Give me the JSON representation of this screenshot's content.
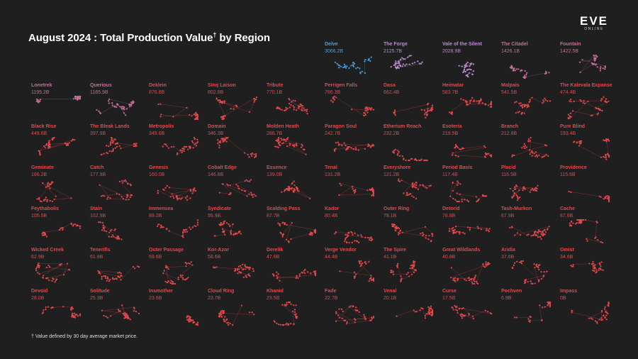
{
  "header": {
    "title": "August 2024 : Total Production Value",
    "dagger": "†",
    "title_suffix": "by Region"
  },
  "logo": {
    "line1": "EVE",
    "line2": "ONLINE"
  },
  "footnote": "† Value defined by 30 day average market price.",
  "colors": {
    "top": "#4a9fe0",
    "high": "#b98ad0",
    "mid": "#c27098",
    "low": "#e2484c",
    "background": "#1f1f1f"
  },
  "chart_data": {
    "type": "table",
    "title": "August 2024 : Total Production Value† by Region",
    "unit": "B",
    "regions": [
      {
        "name": "Delve",
        "value": "3066.2B",
        "tier": "top"
      },
      {
        "name": "The Forge",
        "value": "2125.7B",
        "tier": "high"
      },
      {
        "name": "Vale of the Silent",
        "value": "2028.9B",
        "tier": "high"
      },
      {
        "name": "The Citadel",
        "value": "1426.1B",
        "tier": "mid"
      },
      {
        "name": "Fountain",
        "value": "1422.5B",
        "tier": "mid"
      },
      {
        "name": "Lonetrek",
        "value": "1195.2B",
        "tier": "mid"
      },
      {
        "name": "Querious",
        "value": "1165.9B",
        "tier": "mid"
      },
      {
        "name": "Deklein",
        "value": "876.8B",
        "tier": "low"
      },
      {
        "name": "Sinq Laison",
        "value": "802.8B",
        "tier": "low"
      },
      {
        "name": "Tribute",
        "value": "770.1B",
        "tier": "low"
      },
      {
        "name": "Perrigen Falls",
        "value": "766.3B",
        "tier": "low"
      },
      {
        "name": "Dasa",
        "value": "662.4B",
        "tier": "low"
      },
      {
        "name": "Heimatar",
        "value": "583.7B",
        "tier": "low"
      },
      {
        "name": "Malpais",
        "value": "541.5B",
        "tier": "low"
      },
      {
        "name": "The Kalevala Expanse",
        "value": "474.4B",
        "tier": "low"
      },
      {
        "name": "Black Rise",
        "value": "449.6B",
        "tier": "low"
      },
      {
        "name": "The Bleak Lands",
        "value": "397.9B",
        "tier": "low"
      },
      {
        "name": "Metropolis",
        "value": "349.6B",
        "tier": "low"
      },
      {
        "name": "Domain",
        "value": "346.3B",
        "tier": "low"
      },
      {
        "name": "Molden Heath",
        "value": "286.7B",
        "tier": "low"
      },
      {
        "name": "Paragon Soul",
        "value": "242.7B",
        "tier": "low"
      },
      {
        "name": "Etherium Reach",
        "value": "232.2B",
        "tier": "low"
      },
      {
        "name": "Esoteria",
        "value": "219.5B",
        "tier": "low"
      },
      {
        "name": "Branch",
        "value": "212.8B",
        "tier": "low"
      },
      {
        "name": "Pure Blind",
        "value": "193.4B",
        "tier": "low"
      },
      {
        "name": "Geminate",
        "value": "186.2B",
        "tier": "low"
      },
      {
        "name": "Catch",
        "value": "177.9B",
        "tier": "low"
      },
      {
        "name": "Genesis",
        "value": "160.0B",
        "tier": "low"
      },
      {
        "name": "Cobalt Edge",
        "value": "146.8B",
        "tier": "low"
      },
      {
        "name": "Essence",
        "value": "139.0B",
        "tier": "low"
      },
      {
        "name": "Tenal",
        "value": "131.2B",
        "tier": "low"
      },
      {
        "name": "Everyshore",
        "value": "121.2B",
        "tier": "low"
      },
      {
        "name": "Period Basis",
        "value": "117.4B",
        "tier": "low"
      },
      {
        "name": "Placid",
        "value": "116.5B",
        "tier": "low"
      },
      {
        "name": "Providence",
        "value": "115.6B",
        "tier": "low"
      },
      {
        "name": "Feythabolis",
        "value": "105.5B",
        "tier": "low"
      },
      {
        "name": "Stain",
        "value": "102.9B",
        "tier": "low"
      },
      {
        "name": "Immensea",
        "value": "89.2B",
        "tier": "low"
      },
      {
        "name": "Syndicate",
        "value": "95.9B",
        "tier": "low"
      },
      {
        "name": "Scalding Pass",
        "value": "87.7B",
        "tier": "low"
      },
      {
        "name": "Kador",
        "value": "80.4B",
        "tier": "low"
      },
      {
        "name": "Outer Ring",
        "value": "78.1B",
        "tier": "low"
      },
      {
        "name": "Detorid",
        "value": "76.8B",
        "tier": "low"
      },
      {
        "name": "Tash-Murkon",
        "value": "67.9B",
        "tier": "low"
      },
      {
        "name": "Cache",
        "value": "67.6B",
        "tier": "low"
      },
      {
        "name": "Wicked Creek",
        "value": "62.9B",
        "tier": "low"
      },
      {
        "name": "Tenerifis",
        "value": "61.8B",
        "tier": "low"
      },
      {
        "name": "Outer Passage",
        "value": "59.6B",
        "tier": "low"
      },
      {
        "name": "Kor-Azor",
        "value": "58.6B",
        "tier": "low"
      },
      {
        "name": "Derelik",
        "value": "47.6B",
        "tier": "low"
      },
      {
        "name": "Verge Vendor",
        "value": "44.4B",
        "tier": "low"
      },
      {
        "name": "The Spire",
        "value": "41.1B",
        "tier": "low"
      },
      {
        "name": "Great Wildlands",
        "value": "40.8B",
        "tier": "low"
      },
      {
        "name": "Aridia",
        "value": "37.6B",
        "tier": "low"
      },
      {
        "name": "Omist",
        "value": "34.6B",
        "tier": "low"
      },
      {
        "name": "Devoid",
        "value": "28.0B",
        "tier": "low"
      },
      {
        "name": "Solitude",
        "value": "25.3B",
        "tier": "low"
      },
      {
        "name": "Insmother",
        "value": "23.6B",
        "tier": "low"
      },
      {
        "name": "Cloud Ring",
        "value": "23.7B",
        "tier": "low"
      },
      {
        "name": "Khanid",
        "value": "23.5B",
        "tier": "low"
      },
      {
        "name": "Fade",
        "value": "22.7B",
        "tier": "low"
      },
      {
        "name": "Venal",
        "value": "20.1B",
        "tier": "low"
      },
      {
        "name": "Curse",
        "value": "17.5B",
        "tier": "low"
      },
      {
        "name": "Pochven",
        "value": "6.9B",
        "tier": "low"
      },
      {
        "name": "Impass",
        "value": "0B",
        "tier": "low"
      }
    ]
  }
}
